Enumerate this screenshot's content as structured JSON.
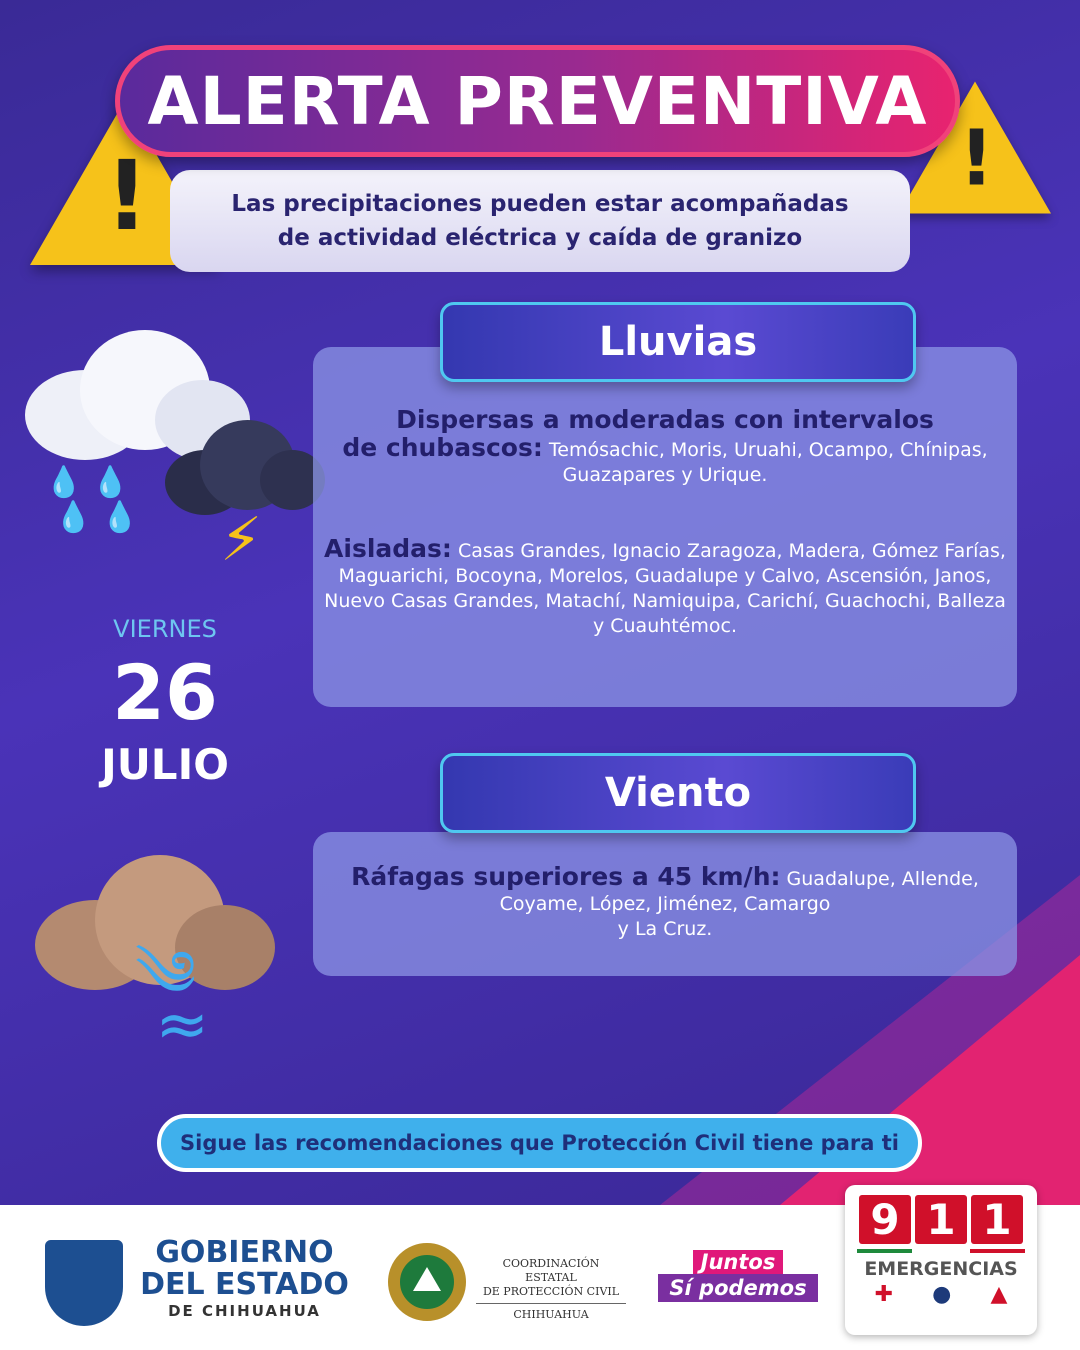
{
  "header": {
    "title": "ALERTA PREVENTIVA",
    "subtitle_line1": "Las precipitaciones pueden estar acompañadas",
    "subtitle_line2": "de actividad eléctrica y caída de granizo"
  },
  "date": {
    "weekday": "VIERNES",
    "day": "26",
    "month": "JULIO"
  },
  "lluvias": {
    "heading": "Lluvias",
    "dispersas_label_1": "Dispersas a moderadas con intervalos",
    "dispersas_label_2": "de chubascos:",
    "dispersas_places_1": "Temósachic, Moris, Uruahi, Ocampo, Chínipas,",
    "dispersas_places_2": "Guazapares y Urique.",
    "aisladas_label": "Aisladas:",
    "aisladas_places_1": "Casas Grandes, Ignacio Zaragoza, Madera, Gómez Farías,",
    "aisladas_places_2": "Maguarichi, Bocoyna, Morelos, Guadalupe y Calvo, Ascensión, Janos,",
    "aisladas_places_3": "Nuevo Casas Grandes, Matachí, Namiquipa, Carichí, Guachochi, Balleza",
    "aisladas_places_4": "y Cuauhtémoc."
  },
  "viento": {
    "heading": "Viento",
    "label": "Ráfagas superiores a 45 km/h:",
    "places_1": "Guadalupe, Allende,",
    "places_2": "Coyame, López, Jiménez, Camargo",
    "places_3": "y  La Cruz."
  },
  "cta": "Sigue las recomendaciones que Protección Civil tiene para ti",
  "footer": {
    "gob_1": "GOBIERNO",
    "gob_2": "DEL ESTADO",
    "gob_3": "DE CHIHUAHUA",
    "pc_1": "COORDINACIÓN ESTATAL",
    "pc_2": "DE PROTECCIÓN CIVIL",
    "pc_3": "CHIHUAHUA",
    "slogan_1": "Juntos",
    "slogan_2": "Sí podemos",
    "em_digits": [
      "9",
      "1",
      "1"
    ],
    "em_label": "EMERGENCIAS"
  },
  "colors": {
    "background": "#3a2a96",
    "accent_pink": "#e8236f",
    "accent_cyan": "#4fc8f0",
    "warning_yellow": "#f6c21a",
    "emergency_red": "#d0102a",
    "gov_blue": "#1d4f91"
  },
  "icons": [
    "warning-triangle-icon",
    "rain-cloud-icon",
    "storm-cloud-icon",
    "lightning-icon",
    "dust-cloud-icon",
    "wind-icon",
    "red-cross-icon",
    "police-cap-icon",
    "firefighter-helmet-icon"
  ]
}
